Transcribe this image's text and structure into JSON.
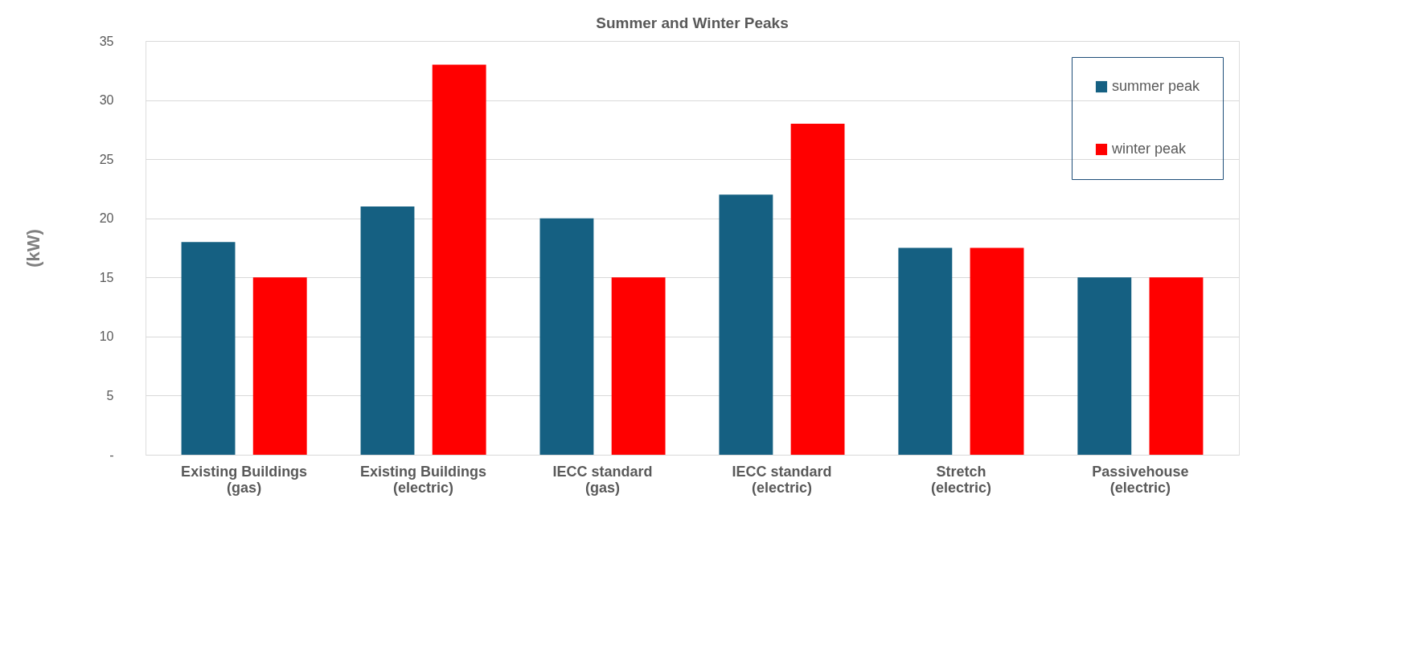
{
  "chart_data": {
    "type": "bar",
    "title": "Summer and Winter Peaks",
    "ylabel": "(kW)",
    "categories": [
      "Existing Buildings\n(gas)",
      "Existing Buildings\n(electric)",
      "IECC standard\n(gas)",
      "IECC standard\n(electric)",
      "Stretch\n(electric)",
      "Passivehouse\n(electric)"
    ],
    "series": [
      {
        "name": "summer peak",
        "color": "#156082",
        "values": [
          18,
          21,
          20,
          22,
          17.5,
          15
        ]
      },
      {
        "name": "winter peak",
        "color": "#ff0000",
        "values": [
          15,
          33,
          15,
          28,
          17.5,
          15
        ]
      }
    ],
    "ylim": [
      0,
      35
    ],
    "yticks": [
      {
        "value": 0,
        "label": "-"
      },
      5,
      10,
      15,
      20,
      25,
      30,
      35
    ],
    "grid": "y",
    "legend": "top right"
  }
}
